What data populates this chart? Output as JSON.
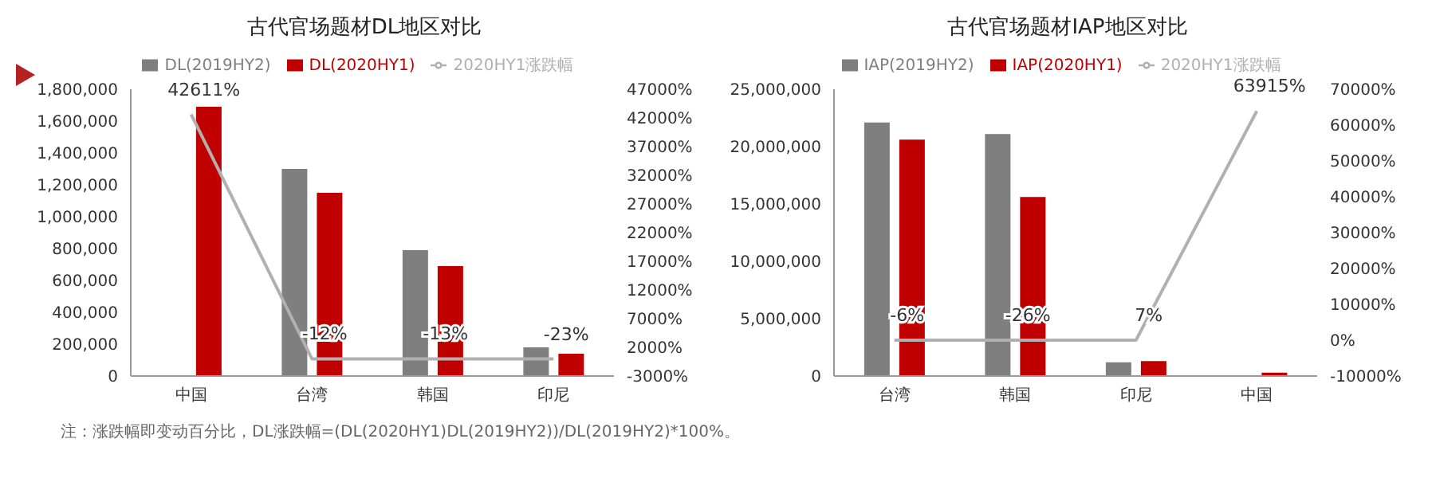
{
  "chart_data": [
    {
      "type": "bar",
      "title": "古代官场题材DL地区对比",
      "categories": [
        "中国",
        "台湾",
        "韩国",
        "印尼"
      ],
      "series": [
        {
          "name": "DL(2019HY2)",
          "color": "#7f7f7f",
          "values": [
            0,
            1300000,
            790000,
            180000
          ]
        },
        {
          "name": "DL(2020HY1)",
          "color": "#c00000",
          "values": [
            1690000,
            1150000,
            690000,
            140000
          ]
        },
        {
          "name": "2020HY1涨跌幅",
          "type": "line",
          "axis": "y2",
          "color": "#b0b0b0",
          "values": [
            42611,
            -12,
            -13,
            -23
          ],
          "value_labels": [
            "42611%",
            "-12%",
            "-13%",
            "-23%"
          ]
        }
      ],
      "ylim": [
        0,
        1800000
      ],
      "yticks": [
        {
          "value": 0,
          "label": "0"
        },
        {
          "value": 200000,
          "label": "200,000"
        },
        {
          "value": 400000,
          "label": "400,000"
        },
        {
          "value": 600000,
          "label": "600,000"
        },
        {
          "value": 800000,
          "label": "800,000"
        },
        {
          "value": 1000000,
          "label": "1,000,000"
        },
        {
          "value": 1200000,
          "label": "1,200,000"
        },
        {
          "value": 1400000,
          "label": "1,400,000"
        },
        {
          "value": 1600000,
          "label": "1,600,000"
        },
        {
          "value": 1800000,
          "label": "1,800,000"
        }
      ],
      "y2lim": [
        -3000,
        47000
      ],
      "y2ticks": [
        {
          "value": -3000,
          "label": "-3000%"
        },
        {
          "value": 2000,
          "label": "2000%"
        },
        {
          "value": 7000,
          "label": "7000%"
        },
        {
          "value": 12000,
          "label": "12000%"
        },
        {
          "value": 17000,
          "label": "17000%"
        },
        {
          "value": 22000,
          "label": "22000%"
        },
        {
          "value": 27000,
          "label": "27000%"
        },
        {
          "value": 32000,
          "label": "32000%"
        },
        {
          "value": 37000,
          "label": "37000%"
        },
        {
          "value": 42000,
          "label": "42000%"
        },
        {
          "value": 47000,
          "label": "47000%"
        }
      ],
      "legend": "top",
      "grid": false,
      "annotations": [
        "注：涨跌幅即变动百分比，DL涨跌幅=(DL(2020HY1)DL(2019HY2))/DL(2019HY2)*100%。"
      ]
    },
    {
      "type": "bar",
      "title": "古代官场题材IAP地区对比",
      "categories": [
        "台湾",
        "韩国",
        "印尼",
        "中国"
      ],
      "series": [
        {
          "name": "IAP(2019HY2)",
          "color": "#7f7f7f",
          "values": [
            22100000,
            21100000,
            1200000,
            0
          ]
        },
        {
          "name": "IAP(2020HY1)",
          "color": "#c00000",
          "values": [
            20600000,
            15600000,
            1300000,
            300000
          ]
        },
        {
          "name": "2020HY1涨跌幅",
          "type": "line",
          "axis": "y2",
          "color": "#b0b0b0",
          "values": [
            -6,
            -26,
            7,
            63915
          ],
          "value_labels": [
            "-6%",
            "-26%",
            "7%",
            "63915%"
          ]
        }
      ],
      "ylim": [
        0,
        25000000
      ],
      "yticks": [
        {
          "value": 0,
          "label": "0"
        },
        {
          "value": 5000000,
          "label": "5,000,000"
        },
        {
          "value": 10000000,
          "label": "10,000,000"
        },
        {
          "value": 15000000,
          "label": "15,000,000"
        },
        {
          "value": 20000000,
          "label": "20,000,000"
        },
        {
          "value": 25000000,
          "label": "25,000,000"
        }
      ],
      "y2lim": [
        -10000,
        70000
      ],
      "y2ticks": [
        {
          "value": -10000,
          "label": "-10000%"
        },
        {
          "value": 0,
          "label": "0%"
        },
        {
          "value": 10000,
          "label": "10000%"
        },
        {
          "value": 20000,
          "label": "20000%"
        },
        {
          "value": 30000,
          "label": "30000%"
        },
        {
          "value": 40000,
          "label": "40000%"
        },
        {
          "value": 50000,
          "label": "50000%"
        },
        {
          "value": 60000,
          "label": "60000%"
        },
        {
          "value": 70000,
          "label": "70000%"
        }
      ],
      "legend": "top",
      "grid": false
    }
  ]
}
